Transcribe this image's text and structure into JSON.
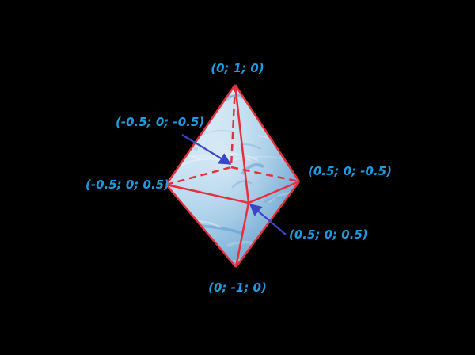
{
  "diagram": {
    "background_color": "#000000",
    "edge_color": "#e8303a",
    "arrow_color": "#3a45c8",
    "label_color": "#1e9be0",
    "face_fill_light": "#e9f4fc",
    "face_fill_mid": "#9fcbe8",
    "face_fill_dark": "#4f8fc4"
  },
  "vertices": {
    "top": "(0; 1; 0)",
    "bottom": "(0; -1; 0)",
    "left_front": "(-0.5; 0; 0.5)",
    "right_back": "(0.5; 0; -0.5)",
    "left_back": "(-0.5; 0; -0.5)",
    "right_front": "(0.5; 0; 0.5)"
  }
}
